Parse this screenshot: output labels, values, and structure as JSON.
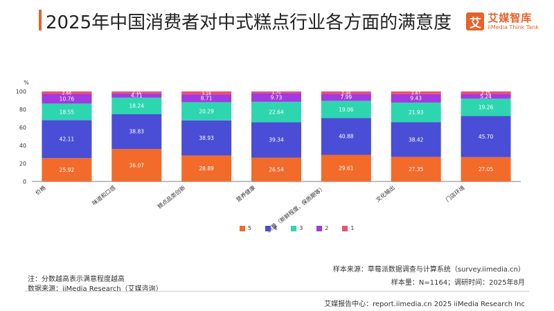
{
  "header": {
    "title": "2025年中国消费者对中式糕点行业各方面的满意度",
    "logo_glyph": "艾",
    "logo_cn": "艾媒智库",
    "logo_en": "iiMedia Think Tank",
    "accent_color": "#e8622a"
  },
  "chart_data": {
    "type": "bar",
    "stacked": true,
    "ylabel": "%",
    "ylim": [
      0,
      100
    ],
    "yticks": [
      0,
      20,
      40,
      60,
      80,
      100
    ],
    "categories": [
      "价格",
      "味道和口感",
      "糕点品类创新",
      "营养健康",
      "质量（新鲜程度、保质期等）",
      "文化输出",
      "门店环境"
    ],
    "series": [
      {
        "name": "5",
        "color": "#f26b2a",
        "values": [
          25.92,
          36.07,
          28.89,
          26.54,
          29.61,
          27.35,
          27.05
        ]
      },
      {
        "name": "4",
        "color": "#4a4ed6",
        "values": [
          42.11,
          38.83,
          38.93,
          39.34,
          40.88,
          38.42,
          45.7
        ]
      },
      {
        "name": "3",
        "color": "#2ed6b0",
        "values": [
          18.55,
          18.24,
          20.29,
          22.64,
          19.06,
          21.93,
          19.26
        ]
      },
      {
        "name": "2",
        "color": "#a13ae0",
        "values": [
          10.76,
          4.71,
          8.71,
          9.73,
          7.99,
          9.43,
          5.24
        ]
      },
      {
        "name": "1",
        "color": "#f0506e",
        "values": [
          2.66,
          2.15,
          3.18,
          1.75,
          2.46,
          2.87,
          2.75
        ]
      }
    ],
    "legend_position": "bottom",
    "grid": false
  },
  "notes": {
    "note": "注：分数越高表示满意程度越高",
    "source": "数据来源：iiMedia Research（艾媒咨询）",
    "sample_source": "样本来源：草莓派数据调查与计算系统（survey.iimedia.cn）",
    "sample_size": "样本量：N=1164；调研时间：2025年8月"
  },
  "footer": {
    "text": "艾媒报告中心：report.iimedia.cn   2025 iiMedia Research Inc"
  }
}
